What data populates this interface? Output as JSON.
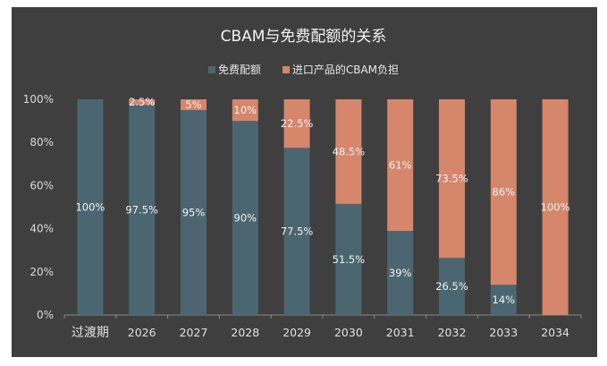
{
  "chart_data": {
    "type": "bar",
    "stacked": true,
    "title": "CBAM与免费配额的关系",
    "categories": [
      "过渡期",
      "2026",
      "2027",
      "2028",
      "2029",
      "2030",
      "2031",
      "2032",
      "2033",
      "2034"
    ],
    "series": [
      {
        "name": "免费配额",
        "color": "#4b6670",
        "values": [
          100,
          97.5,
          95,
          90,
          77.5,
          51.5,
          39,
          26.5,
          14,
          0
        ]
      },
      {
        "name": "进口产品的CBAM负担",
        "color": "#d5866b",
        "values": [
          0,
          2.5,
          5,
          10,
          22.5,
          48.5,
          61,
          73.5,
          86,
          100
        ]
      }
    ],
    "ylim": [
      0,
      100
    ],
    "yticks": [
      "0%",
      "20%",
      "40%",
      "60%",
      "80%",
      "100%"
    ],
    "xlabel": "",
    "ylabel": "",
    "grid": false,
    "legend": "top",
    "background": "#3f3f3f"
  }
}
